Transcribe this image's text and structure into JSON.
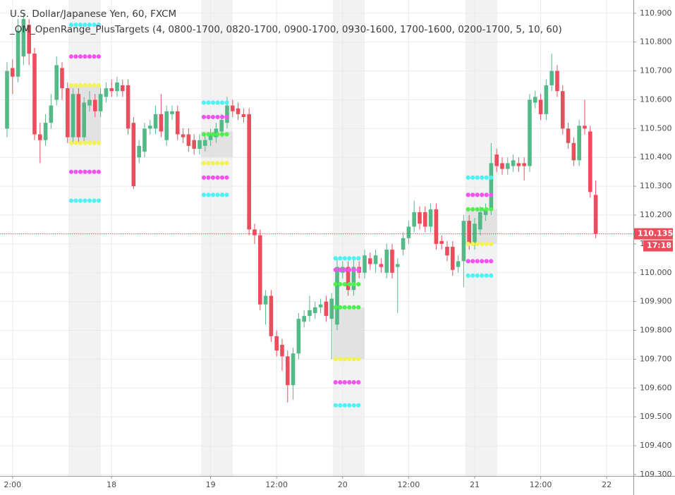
{
  "chart_data": {
    "type": "candlestick",
    "title": "U.S. Dollar/Japanese Yen, 60, FXCM",
    "subtitle": "_OM_OpenRange_PlusTargets (4, 0800-1700, 0820-1700, 0900-1700, 0930-1600, 1700-1600, 0200-1700, 5, 10, 60)",
    "up_color": "#53b987",
    "down_color": "#eb4d5c",
    "open": [
      110.5,
      110.71,
      110.68,
      110.75,
      110.86,
      110.76,
      110.48,
      110.46,
      110.52,
      110.6,
      110.71,
      110.64,
      110.47,
      110.62,
      110.47,
      110.58,
      110.6,
      110.56,
      110.61,
      110.64,
      110.63,
      110.65,
      110.65,
      110.52,
      110.4,
      110.42,
      110.5,
      110.5,
      110.55,
      110.46,
      110.55,
      110.56,
      110.48,
      110.48,
      110.46,
      110.43,
      110.44,
      110.46,
      110.47,
      110.49,
      110.52,
      110.58,
      110.57,
      110.55,
      110.55,
      110.15,
      110.13,
      109.89,
      109.92,
      109.78,
      109.75,
      109.71,
      109.61,
      109.72,
      109.83,
      109.85,
      109.86,
      109.88,
      109.9,
      109.84,
      109.82,
      110.0,
      110.02,
      109.94,
      110.02,
      110.0,
      110.05,
      110.03,
      110.03,
      110.0,
      110.08,
      110.02,
      110.08,
      110.12,
      110.16,
      110.21,
      110.21,
      110.16,
      110.22,
      110.11,
      110.09,
      110.09,
      110.02,
      110.04,
      110.18,
      110.1,
      110.15,
      110.2,
      110.22,
      110.41,
      110.38,
      110.36,
      110.37,
      110.38,
      110.38,
      110.37,
      110.59,
      110.6,
      110.55,
      110.65,
      110.7,
      110.63,
      110.5,
      110.45,
      110.39,
      110.51,
      110.49,
      110.27
    ],
    "high": [
      110.73,
      110.74,
      110.88,
      110.9,
      110.88,
      110.78,
      110.52,
      110.55,
      110.62,
      110.75,
      110.73,
      110.66,
      110.64,
      110.64,
      110.61,
      110.63,
      110.62,
      110.64,
      110.66,
      110.67,
      110.68,
      110.67,
      110.67,
      110.54,
      110.46,
      110.52,
      110.53,
      110.58,
      110.62,
      110.58,
      110.58,
      110.58,
      110.5,
      110.5,
      110.48,
      110.48,
      110.48,
      110.5,
      110.52,
      110.55,
      110.61,
      110.6,
      110.59,
      110.57,
      110.57,
      110.17,
      110.15,
      109.94,
      109.94,
      109.8,
      109.77,
      109.73,
      109.74,
      109.86,
      109.87,
      109.92,
      109.9,
      109.91,
      109.92,
      109.93,
      110.05,
      110.04,
      110.04,
      110.05,
      110.04,
      110.08,
      110.07,
      110.08,
      110.05,
      110.1,
      110.1,
      110.05,
      110.14,
      110.18,
      110.25,
      110.23,
      110.23,
      110.24,
      110.24,
      110.13,
      110.11,
      110.11,
      110.06,
      110.2,
      110.2,
      110.19,
      110.23,
      110.24,
      110.45,
      110.43,
      110.4,
      110.4,
      110.41,
      110.4,
      110.4,
      110.62,
      110.63,
      110.62,
      110.67,
      110.76,
      110.72,
      110.65,
      110.52,
      110.47,
      110.53,
      110.6,
      110.51,
      110.32
    ],
    "low": [
      110.47,
      110.62,
      110.66,
      110.72,
      110.72,
      110.46,
      110.38,
      110.44,
      110.5,
      110.58,
      110.6,
      110.45,
      110.45,
      110.45,
      110.45,
      110.56,
      110.54,
      110.54,
      110.59,
      110.61,
      110.61,
      110.61,
      110.48,
      110.29,
      110.38,
      110.4,
      110.48,
      110.48,
      110.47,
      110.44,
      110.53,
      110.46,
      110.45,
      110.42,
      110.41,
      110.41,
      110.42,
      110.44,
      110.45,
      110.47,
      110.5,
      110.54,
      110.53,
      110.52,
      110.13,
      110.1,
      109.87,
      109.82,
      109.76,
      109.71,
      109.66,
      109.55,
      109.56,
      109.7,
      109.81,
      109.83,
      109.84,
      109.86,
      109.83,
      109.7,
      109.8,
      109.98,
      109.92,
      109.92,
      109.98,
      109.98,
      110.01,
      110.0,
      110.0,
      109.98,
      109.98,
      109.86,
      110.06,
      110.1,
      110.14,
      110.15,
      110.14,
      110.14,
      110.08,
      110.08,
      110.04,
      109.99,
      110.0,
      109.95,
      110.08,
      110.08,
      110.13,
      110.18,
      110.2,
      110.35,
      110.34,
      110.34,
      110.35,
      110.35,
      110.32,
      110.35,
      110.57,
      110.53,
      110.53,
      110.63,
      110.61,
      110.48,
      110.43,
      110.37,
      110.37,
      110.48,
      110.26,
      110.12
    ],
    "close": [
      110.7,
      110.68,
      110.84,
      110.88,
      110.76,
      110.48,
      110.46,
      110.52,
      110.58,
      110.72,
      110.64,
      110.47,
      110.62,
      110.47,
      110.59,
      110.6,
      110.56,
      110.62,
      110.64,
      110.63,
      110.66,
      110.63,
      110.5,
      110.3,
      110.44,
      110.5,
      110.51,
      110.55,
      110.49,
      110.56,
      110.56,
      110.48,
      110.47,
      110.44,
      110.43,
      110.46,
      110.46,
      110.48,
      110.5,
      110.53,
      110.58,
      110.56,
      110.55,
      110.54,
      110.15,
      110.13,
      109.89,
      109.92,
      109.78,
      109.73,
      109.71,
      109.61,
      109.72,
      109.84,
      109.85,
      109.87,
      109.88,
      109.89,
      109.85,
      109.91,
      110.02,
      110.02,
      109.94,
      110.02,
      110.0,
      110.06,
      110.03,
      110.06,
      110.02,
      110.08,
      110.0,
      110.03,
      110.12,
      110.16,
      110.21,
      110.17,
      110.16,
      110.22,
      110.1,
      110.1,
      110.06,
      110.01,
      110.04,
      110.18,
      110.1,
      110.17,
      110.21,
      110.22,
      110.38,
      110.37,
      110.36,
      110.38,
      110.39,
      110.37,
      110.37,
      110.6,
      110.61,
      110.55,
      110.65,
      110.7,
      110.63,
      110.5,
      110.45,
      110.39,
      110.51,
      110.5,
      110.28,
      110.135
    ],
    "sessions": [
      {
        "x": [
          11.15,
          17.05
        ],
        "range": [
          110.65,
          110.45
        ],
        "levels": [
          {
            "value": 110.86,
            "color": "#4ef2f2"
          },
          {
            "value": 110.75,
            "color": "#f254f2"
          },
          {
            "value": 110.65,
            "color": "#f2f254"
          },
          {
            "value": 110.45,
            "color": "#f2f254"
          },
          {
            "value": 110.35,
            "color": "#f254f2"
          },
          {
            "value": 110.25,
            "color": "#4ef2f2"
          }
        ]
      },
      {
        "x": [
          35.26,
          41.03
        ],
        "range": [
          110.49,
          110.4
        ],
        "levels": [
          {
            "value": 110.59,
            "color": "#4ef2f2"
          },
          {
            "value": 110.54,
            "color": "#f254f2"
          },
          {
            "value": 110.48,
            "color": "#4ef04e"
          },
          {
            "value": 110.38,
            "color": "#f2f254"
          },
          {
            "value": 110.33,
            "color": "#f254f2"
          },
          {
            "value": 110.27,
            "color": "#4ef2f2"
          }
        ]
      },
      {
        "x": [
          59.2,
          65.0
        ],
        "range": [
          109.88,
          109.7
        ],
        "levels": [
          {
            "value": 110.05,
            "color": "#4ef2f2"
          },
          {
            "value": 110.01,
            "color": "#f254f2"
          },
          {
            "value": 109.96,
            "color": "#4ef04e"
          },
          {
            "value": 109.88,
            "color": "#4ef04e"
          },
          {
            "value": 109.7,
            "color": "#f2f254"
          },
          {
            "value": 109.62,
            "color": "#f254f2"
          },
          {
            "value": 109.54,
            "color": "#4ef2f2"
          }
        ]
      },
      {
        "x": [
          83.3,
          89.1
        ],
        "range": [
          110.22,
          110.1
        ],
        "levels": [
          {
            "value": 110.33,
            "color": "#4ef2f2"
          },
          {
            "value": 110.27,
            "color": "#f254f2"
          },
          {
            "value": 110.22,
            "color": "#4ef04e"
          },
          {
            "value": 110.1,
            "color": "#f2f254"
          },
          {
            "value": 110.04,
            "color": "#f254f2"
          },
          {
            "value": 109.99,
            "color": "#4ef2f2"
          }
        ]
      }
    ],
    "last_price": 110.135,
    "countdown": "17:18",
    "xlim": [
      -1.28,
      113.85
    ],
    "xticks": [
      {
        "value": 1,
        "label": "2:00"
      },
      {
        "value": 19,
        "label": "18"
      },
      {
        "value": 37,
        "label": "19"
      },
      {
        "value": 49,
        "label": "12:00"
      },
      {
        "value": 61,
        "label": "20"
      },
      {
        "value": 73,
        "label": "12:00"
      },
      {
        "value": 85,
        "label": "21"
      },
      {
        "value": 97,
        "label": "12:00"
      },
      {
        "value": 109,
        "label": "22"
      }
    ],
    "ylim": [
      109.295,
      110.946
    ],
    "yticks": [
      {
        "value": 109.3,
        "label": "109.300"
      },
      {
        "value": 109.4,
        "label": "109.400"
      },
      {
        "value": 109.5,
        "label": "109.500"
      },
      {
        "value": 109.6,
        "label": "109.600"
      },
      {
        "value": 109.7,
        "label": "109.700"
      },
      {
        "value": 109.8,
        "label": "109.800"
      },
      {
        "value": 109.9,
        "label": "109.900"
      },
      {
        "value": 110.0,
        "label": "110.000"
      },
      {
        "value": 110.1,
        "label": "110.100"
      },
      {
        "value": 110.2,
        "label": "110.200"
      },
      {
        "value": 110.3,
        "label": "110.300"
      },
      {
        "value": 110.4,
        "label": "110.400"
      },
      {
        "value": 110.5,
        "label": "110.500"
      },
      {
        "value": 110.6,
        "label": "110.600"
      },
      {
        "value": 110.7,
        "label": "110.700"
      },
      {
        "value": 110.8,
        "label": "110.800"
      },
      {
        "value": 110.9,
        "label": "110.900"
      }
    ],
    "grid": true
  }
}
